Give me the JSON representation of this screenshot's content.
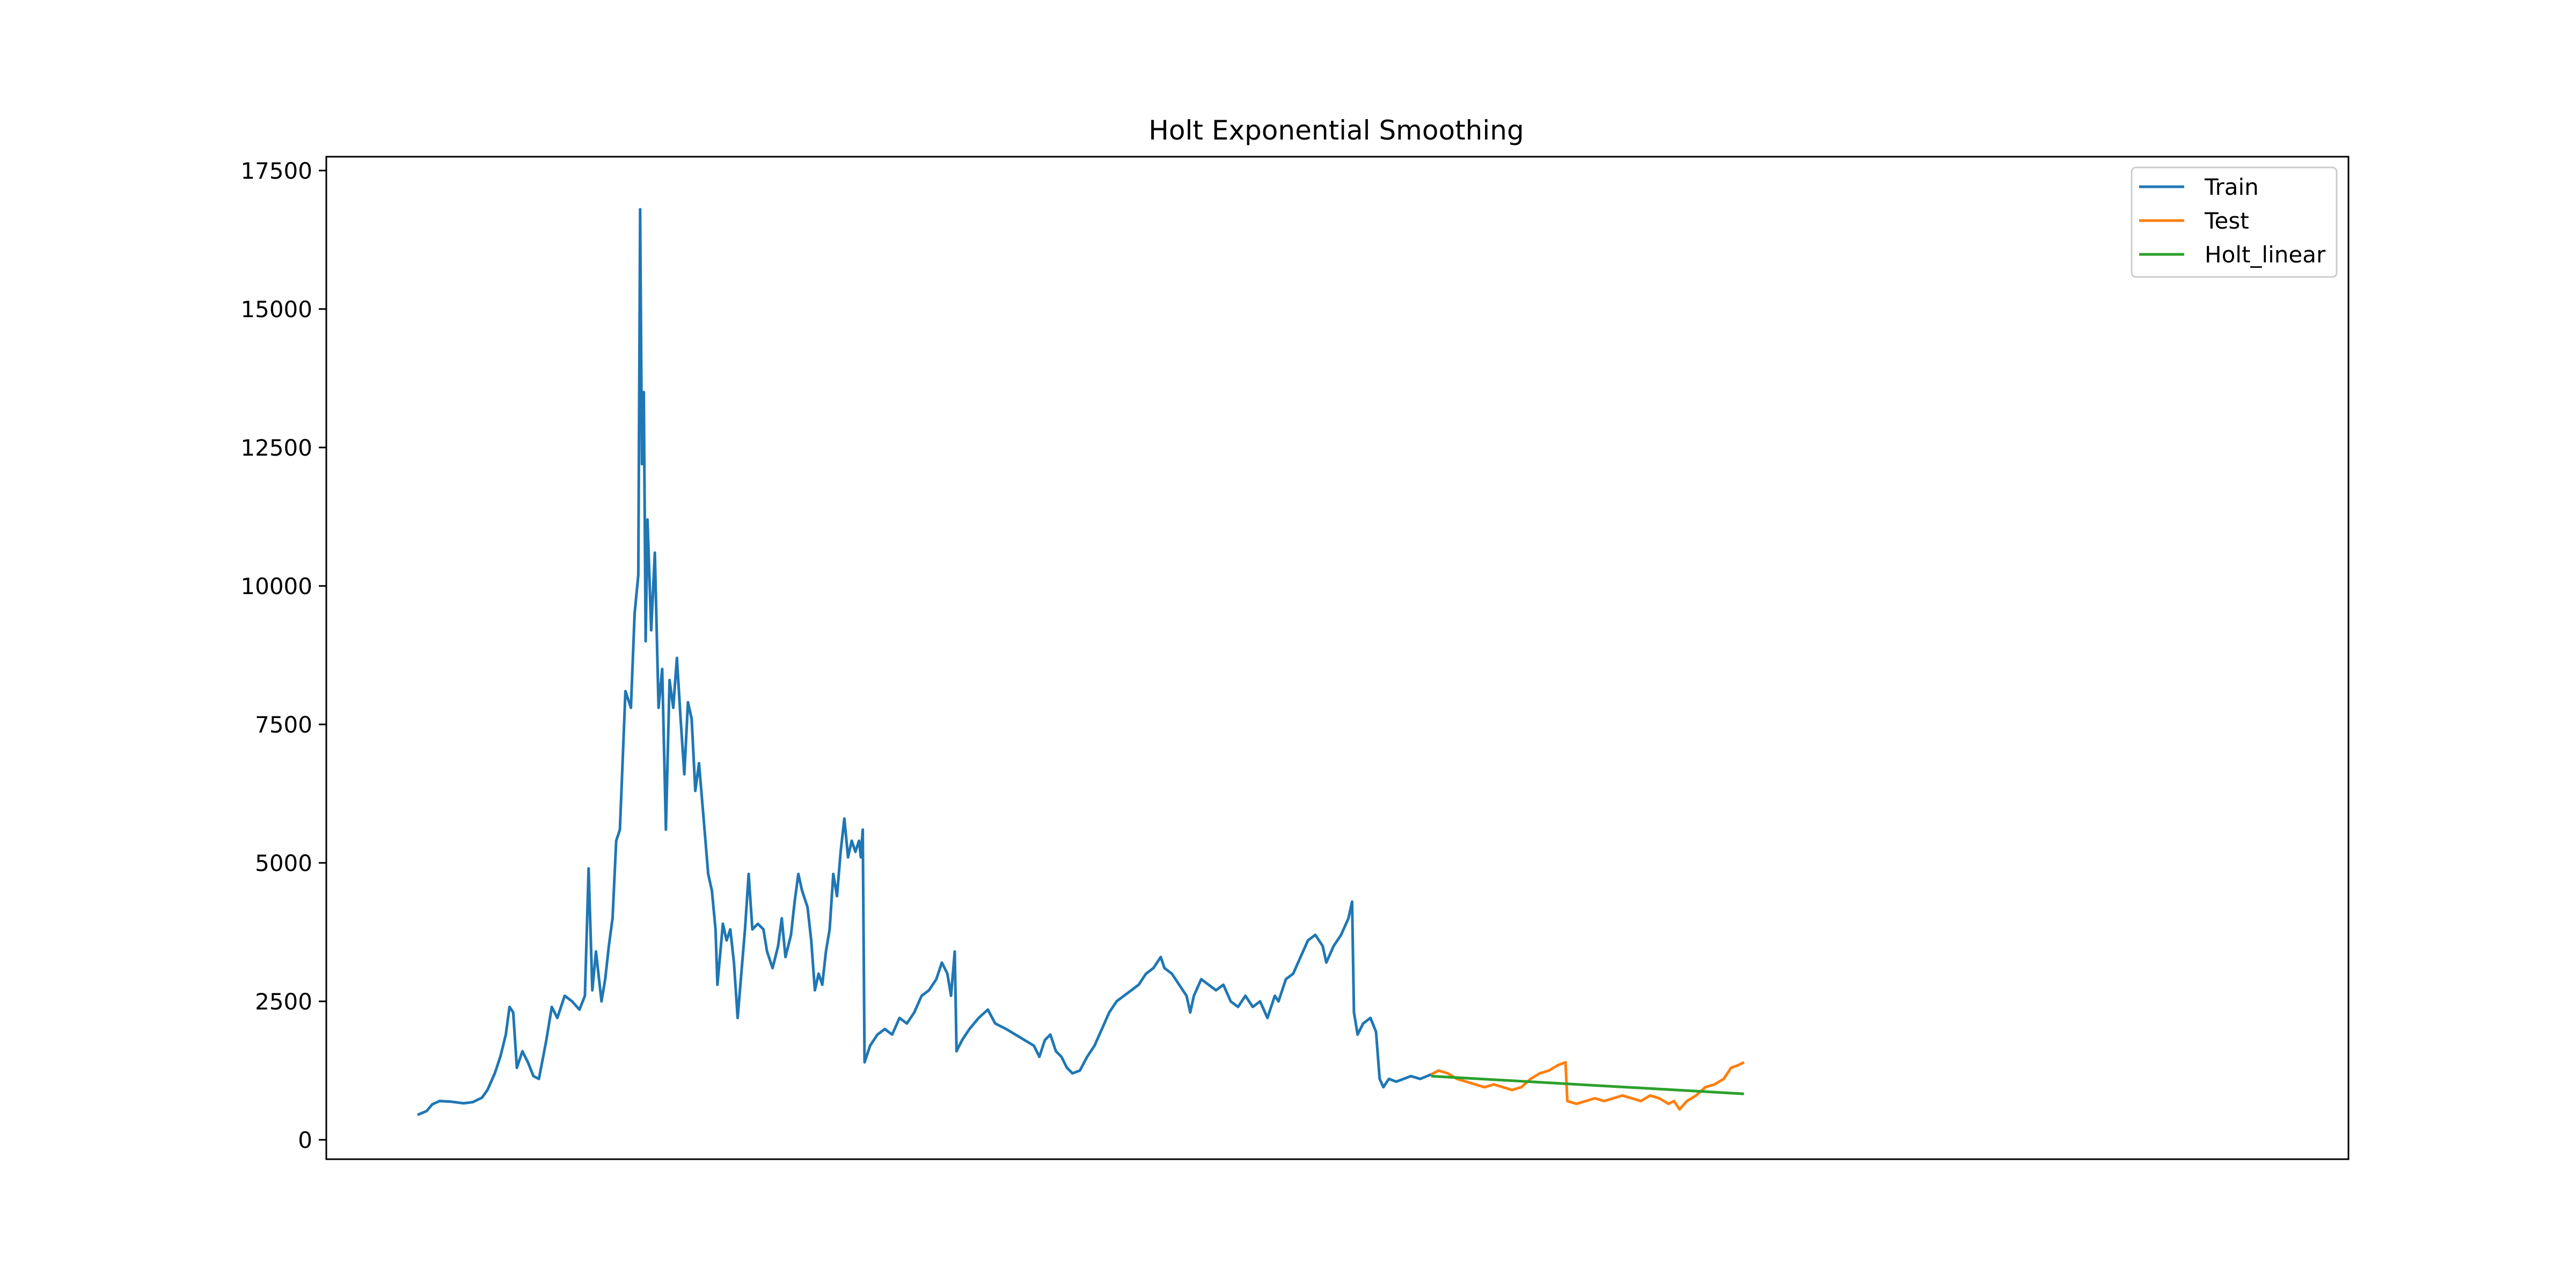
{
  "chart_data": {
    "type": "line",
    "title": "Holt Exponential Smoothing",
    "xlabel": "",
    "ylabel": "",
    "x_range": [
      0,
      1000
    ],
    "ylim": [
      -350,
      17750
    ],
    "yticks": [
      0,
      2500,
      5000,
      7500,
      10000,
      12500,
      15000,
      17500
    ],
    "ytick_labels": [
      "0",
      "2500",
      "5000",
      "7500",
      "10000",
      "12500",
      "15000",
      "17500"
    ],
    "xticks_visible": false,
    "grid": false,
    "legend_position": "top-right",
    "series": [
      {
        "name": "Train",
        "color": "#1f77b4",
        "points": [
          [
            0,
            450
          ],
          [
            5,
            520
          ],
          [
            8,
            640
          ],
          [
            12,
            700
          ],
          [
            18,
            690
          ],
          [
            25,
            660
          ],
          [
            30,
            680
          ],
          [
            35,
            760
          ],
          [
            38,
            900
          ],
          [
            42,
            1200
          ],
          [
            45,
            1500
          ],
          [
            48,
            1900
          ],
          [
            50,
            2400
          ],
          [
            52,
            2300
          ],
          [
            54,
            1300
          ],
          [
            57,
            1600
          ],
          [
            60,
            1400
          ],
          [
            63,
            1150
          ],
          [
            66,
            1100
          ],
          [
            70,
            1800
          ],
          [
            73,
            2400
          ],
          [
            76,
            2200
          ],
          [
            80,
            2600
          ],
          [
            84,
            2500
          ],
          [
            88,
            2350
          ],
          [
            91,
            2600
          ],
          [
            93,
            4900
          ],
          [
            95,
            2700
          ],
          [
            97,
            3400
          ],
          [
            100,
            2500
          ],
          [
            102,
            2900
          ],
          [
            104,
            3500
          ],
          [
            106,
            4000
          ],
          [
            108,
            5400
          ],
          [
            110,
            5600
          ],
          [
            113,
            8100
          ],
          [
            116,
            7800
          ],
          [
            118,
            9500
          ],
          [
            120,
            10200
          ],
          [
            121,
            16800
          ],
          [
            122,
            12200
          ],
          [
            123,
            13500
          ],
          [
            124,
            9000
          ],
          [
            125,
            11200
          ],
          [
            127,
            9200
          ],
          [
            129,
            10600
          ],
          [
            131,
            7800
          ],
          [
            133,
            8500
          ],
          [
            135,
            5600
          ],
          [
            137,
            8300
          ],
          [
            139,
            7800
          ],
          [
            141,
            8700
          ],
          [
            143,
            7600
          ],
          [
            145,
            6600
          ],
          [
            147,
            7900
          ],
          [
            149,
            7600
          ],
          [
            151,
            6300
          ],
          [
            153,
            6800
          ],
          [
            156,
            5600
          ],
          [
            158,
            4800
          ],
          [
            160,
            4500
          ],
          [
            162,
            3800
          ],
          [
            163,
            2800
          ],
          [
            166,
            3900
          ],
          [
            168,
            3600
          ],
          [
            170,
            3800
          ],
          [
            172,
            3200
          ],
          [
            174,
            2200
          ],
          [
            176,
            3000
          ],
          [
            178,
            3800
          ],
          [
            180,
            4800
          ],
          [
            182,
            3800
          ],
          [
            185,
            3900
          ],
          [
            188,
            3800
          ],
          [
            190,
            3400
          ],
          [
            193,
            3100
          ],
          [
            196,
            3500
          ],
          [
            198,
            4000
          ],
          [
            200,
            3300
          ],
          [
            203,
            3700
          ],
          [
            205,
            4300
          ],
          [
            207,
            4800
          ],
          [
            209,
            4500
          ],
          [
            212,
            4200
          ],
          [
            214,
            3600
          ],
          [
            216,
            2700
          ],
          [
            218,
            3000
          ],
          [
            220,
            2800
          ],
          [
            222,
            3400
          ],
          [
            224,
            3800
          ],
          [
            226,
            4800
          ],
          [
            228,
            4400
          ],
          [
            230,
            5200
          ],
          [
            232,
            5800
          ],
          [
            234,
            5100
          ],
          [
            236,
            5400
          ],
          [
            238,
            5200
          ],
          [
            240,
            5400
          ],
          [
            241,
            5100
          ],
          [
            242,
            5600
          ],
          [
            243,
            1400
          ],
          [
            246,
            1700
          ],
          [
            250,
            1900
          ],
          [
            254,
            2000
          ],
          [
            258,
            1900
          ],
          [
            262,
            2200
          ],
          [
            266,
            2100
          ],
          [
            270,
            2300
          ],
          [
            274,
            2600
          ],
          [
            278,
            2700
          ],
          [
            282,
            2900
          ],
          [
            285,
            3200
          ],
          [
            288,
            3000
          ],
          [
            290,
            2600
          ],
          [
            292,
            3400
          ],
          [
            293,
            1600
          ],
          [
            296,
            1800
          ],
          [
            300,
            2000
          ],
          [
            305,
            2200
          ],
          [
            310,
            2350
          ],
          [
            314,
            2100
          ],
          [
            320,
            2000
          ],
          [
            325,
            1900
          ],
          [
            330,
            1800
          ],
          [
            335,
            1700
          ],
          [
            338,
            1500
          ],
          [
            341,
            1800
          ],
          [
            344,
            1900
          ],
          [
            347,
            1600
          ],
          [
            350,
            1500
          ],
          [
            353,
            1300
          ],
          [
            356,
            1200
          ],
          [
            360,
            1250
          ],
          [
            364,
            1500
          ],
          [
            368,
            1700
          ],
          [
            372,
            2000
          ],
          [
            376,
            2300
          ],
          [
            380,
            2500
          ],
          [
            384,
            2600
          ],
          [
            388,
            2700
          ],
          [
            392,
            2800
          ],
          [
            396,
            3000
          ],
          [
            400,
            3100
          ],
          [
            404,
            3300
          ],
          [
            406,
            3100
          ],
          [
            410,
            3000
          ],
          [
            414,
            2800
          ],
          [
            418,
            2600
          ],
          [
            420,
            2300
          ],
          [
            422,
            2600
          ],
          [
            426,
            2900
          ],
          [
            430,
            2800
          ],
          [
            434,
            2700
          ],
          [
            438,
            2800
          ],
          [
            442,
            2500
          ],
          [
            446,
            2400
          ],
          [
            450,
            2600
          ],
          [
            454,
            2400
          ],
          [
            458,
            2500
          ],
          [
            462,
            2200
          ],
          [
            466,
            2600
          ],
          [
            468,
            2500
          ],
          [
            472,
            2900
          ],
          [
            476,
            3000
          ],
          [
            480,
            3300
          ],
          [
            484,
            3600
          ],
          [
            488,
            3700
          ],
          [
            492,
            3500
          ],
          [
            494,
            3200
          ],
          [
            498,
            3500
          ],
          [
            502,
            3700
          ],
          [
            506,
            4000
          ],
          [
            508,
            4300
          ],
          [
            509,
            2300
          ],
          [
            511,
            1900
          ],
          [
            514,
            2100
          ],
          [
            518,
            2200
          ],
          [
            521,
            1950
          ],
          [
            523,
            1100
          ],
          [
            525,
            950
          ],
          [
            528,
            1100
          ],
          [
            532,
            1050
          ],
          [
            536,
            1100
          ],
          [
            540,
            1150
          ],
          [
            545,
            1100
          ],
          [
            551,
            1180
          ]
        ]
      },
      {
        "name": "Test",
        "color": "#ff7f0e",
        "points": [
          [
            551,
            1180
          ],
          [
            555,
            1250
          ],
          [
            560,
            1200
          ],
          [
            565,
            1100
          ],
          [
            570,
            1050
          ],
          [
            575,
            1000
          ],
          [
            580,
            950
          ],
          [
            585,
            1000
          ],
          [
            590,
            950
          ],
          [
            595,
            900
          ],
          [
            600,
            950
          ],
          [
            605,
            1100
          ],
          [
            610,
            1200
          ],
          [
            615,
            1250
          ],
          [
            620,
            1350
          ],
          [
            624,
            1400
          ],
          [
            625,
            700
          ],
          [
            630,
            650
          ],
          [
            635,
            700
          ],
          [
            640,
            750
          ],
          [
            645,
            700
          ],
          [
            650,
            750
          ],
          [
            655,
            800
          ],
          [
            660,
            750
          ],
          [
            665,
            700
          ],
          [
            670,
            800
          ],
          [
            675,
            750
          ],
          [
            680,
            650
          ],
          [
            683,
            700
          ],
          [
            686,
            550
          ],
          [
            690,
            700
          ],
          [
            695,
            800
          ],
          [
            700,
            950
          ],
          [
            705,
            1000
          ],
          [
            710,
            1100
          ],
          [
            714,
            1300
          ],
          [
            718,
            1350
          ],
          [
            721,
            1400
          ]
        ]
      },
      {
        "name": "Holt_linear",
        "color": "#2ca02c",
        "points": [
          [
            551,
            1150
          ],
          [
            721,
            830
          ]
        ]
      }
    ]
  }
}
